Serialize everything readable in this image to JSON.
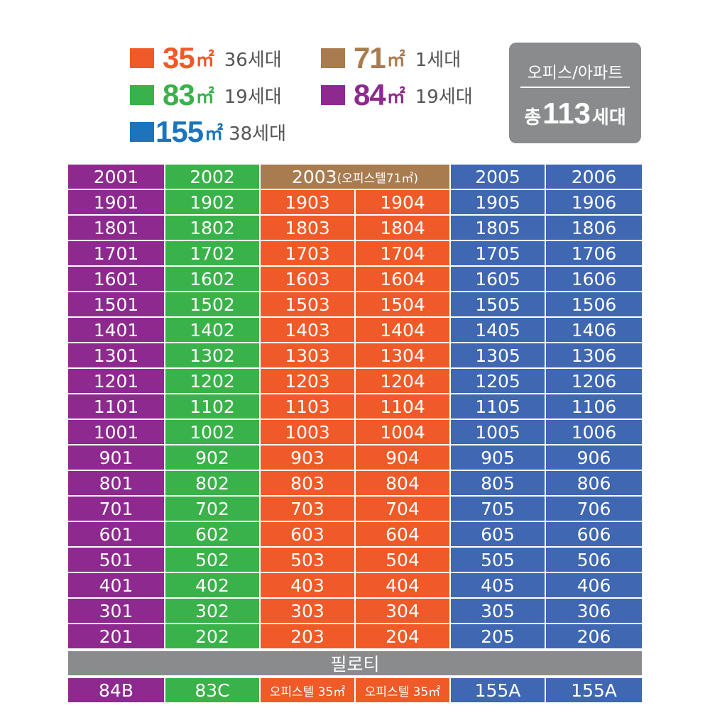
{
  "colors": {
    "purple": "#8e2a8f",
    "green": "#3ab24a",
    "orange": "#f05a28",
    "brown": "#a97c50",
    "blue": "#3f67b2",
    "gray": "#8a8b8c"
  },
  "legend": [
    {
      "area": "35",
      "unit": "㎡",
      "count": "36세대",
      "color": "#f05a28"
    },
    {
      "area": "71",
      "unit": "㎡",
      "count": "1세대",
      "color": "#a97c50"
    },
    {
      "area": "83",
      "unit": "㎡",
      "count": "19세대",
      "color": "#3ab24a"
    },
    {
      "area": "84",
      "unit": "㎡",
      "count": "19세대",
      "color": "#8e2a8f"
    },
    {
      "area": "155",
      "unit": "㎡",
      "count": "38세대",
      "color": "#1c75bc"
    }
  ],
  "summary": {
    "title": "오피스/아파트",
    "total_prefix": "총",
    "total_number": "113",
    "total_suffix": "세대"
  },
  "top_floor": {
    "col1": "2001",
    "col2": "2002",
    "col3_main": "2003",
    "col3_sub": "(오피스텔71㎡)",
    "col5": "2005",
    "col6": "2006"
  },
  "floors": [
    "19",
    "18",
    "17",
    "16",
    "15",
    "14",
    "13",
    "12",
    "11",
    "10",
    "9",
    "8",
    "7",
    "6",
    "5",
    "4",
    "3",
    "2"
  ],
  "pilotis_label": "필로티",
  "types": [
    "84B",
    "83C",
    "오피스텔 35㎡",
    "오피스텔 35㎡",
    "155A",
    "155A"
  ]
}
